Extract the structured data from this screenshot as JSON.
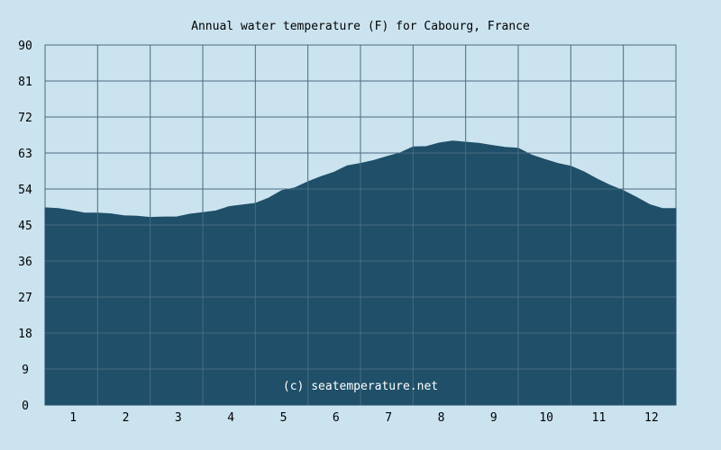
{
  "chart_data": {
    "type": "area",
    "title": "Annual water temperature (F) for Cabourg, France",
    "xlabel": "",
    "ylabel": "",
    "x_ticks": [
      "1",
      "2",
      "3",
      "4",
      "5",
      "6",
      "7",
      "8",
      "9",
      "10",
      "11",
      "12"
    ],
    "y_ticks": [
      "0",
      "9",
      "18",
      "27",
      "36",
      "45",
      "54",
      "63",
      "72",
      "81",
      "90"
    ],
    "ylim": [
      0,
      90
    ],
    "xlim": [
      0.5,
      12.5
    ],
    "grid": true,
    "watermark": "(c) seatemperature.net",
    "colors": {
      "background": "#cae3ef",
      "fill": "#1f4f69",
      "grid": "#4a6b80"
    },
    "series": [
      {
        "x": [
          0.5,
          0.75,
          1.0,
          1.25,
          1.5,
          1.75,
          2.0,
          2.25,
          2.5,
          2.75,
          3.0,
          3.25,
          3.5,
          3.75,
          4.0,
          4.25,
          4.5,
          4.75,
          5.0,
          5.25,
          5.5,
          5.75,
          6.0,
          6.25,
          6.5,
          6.75,
          7.0,
          7.25,
          7.5,
          7.75,
          8.0,
          8.25,
          8.5,
          8.75,
          9.0,
          9.25,
          9.5,
          9.75,
          10.0,
          10.25,
          10.5,
          10.75,
          11.0,
          11.25,
          11.5,
          11.75,
          12.0,
          12.25,
          12.5
        ],
        "values": [
          49.3,
          49.1,
          48.6,
          48.0,
          48.0,
          47.8,
          47.3,
          47.2,
          46.9,
          47.0,
          47.0,
          47.7,
          48.1,
          48.5,
          49.6,
          50.0,
          50.4,
          51.7,
          53.6,
          54.3,
          55.8,
          57.1,
          58.2,
          59.8,
          60.4,
          61.1,
          62.1,
          63.0,
          64.5,
          64.6,
          65.5,
          66.0,
          65.7,
          65.4,
          64.9,
          64.4,
          64.2,
          62.5,
          61.4,
          60.4,
          59.7,
          58.3,
          56.5,
          54.9,
          53.6,
          51.9,
          50.1,
          49.1,
          49.1
        ]
      }
    ]
  }
}
